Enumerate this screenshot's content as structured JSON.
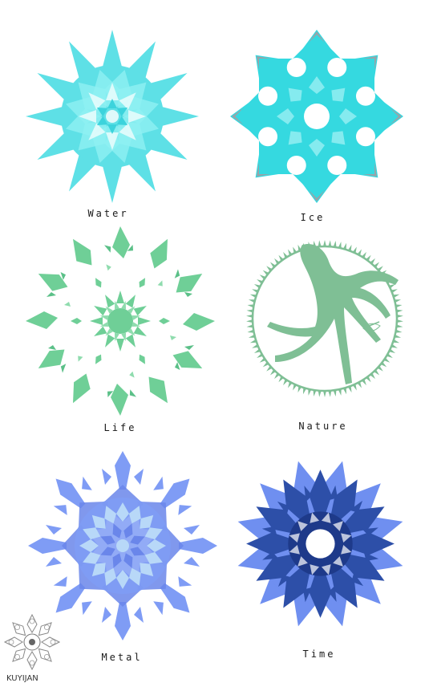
{
  "emblems": [
    {
      "label": "Water",
      "colors": {
        "primary": "#5ee0e6",
        "secondary": "#8ff0f2",
        "accent": "#3cd3dc"
      }
    },
    {
      "label": "Ice",
      "colors": {
        "primary": "#35d9e0",
        "secondary": "#a8f2f5",
        "accent": "#9aa3a8"
      }
    },
    {
      "label": "Life",
      "colors": {
        "primary": "#6fcf97",
        "secondary": "#8fdcae",
        "accent": "#5bc088"
      }
    },
    {
      "label": "Nature",
      "colors": {
        "primary": "#7fbf95",
        "secondary": "#8fc9a2",
        "accent": "#6aa982"
      }
    },
    {
      "label": "Metal",
      "colors": {
        "primary": "#7f9cf5",
        "secondary": "#b8d8f8",
        "accent": "#6a86ea"
      }
    },
    {
      "label": "Time",
      "colors": {
        "primary": "#2d4fa8",
        "secondary": "#6f8ff0",
        "accent": "#1e3a8a"
      }
    }
  ],
  "signature": {
    "text": "KUYIJAN"
  }
}
